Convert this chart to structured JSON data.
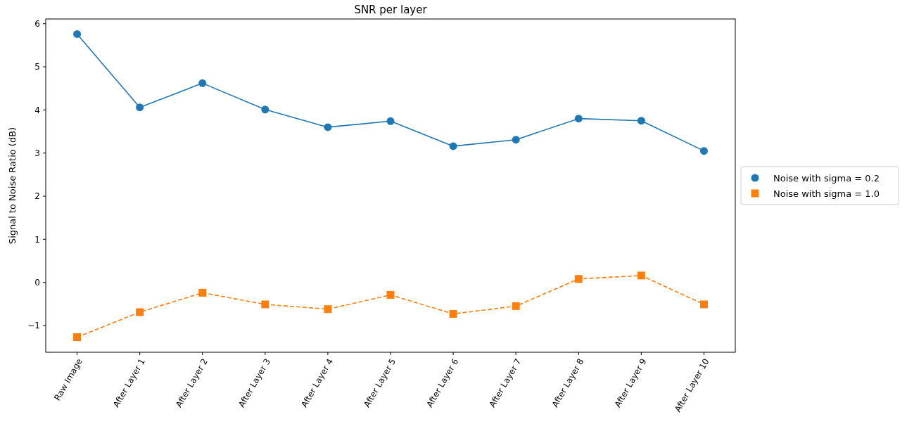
{
  "chart_data": {
    "type": "line",
    "title": "SNR per layer",
    "ylabel": "Signal to Noise Ratio (dB)",
    "categories": [
      "Raw Image",
      "After Layer 1",
      "After Layer 2",
      "After Layer 3",
      "After Layer 4",
      "After Layer 5",
      "After Layer 6",
      "After Layer 7",
      "After Layer 8",
      "After Layer 9",
      "After Layer 10"
    ],
    "series": [
      {
        "name": "Noise with sigma = 0.2",
        "color": "#1f77b4",
        "marker": "circle",
        "line_style": "solid",
        "values": [
          5.76,
          4.06,
          4.62,
          4.01,
          3.6,
          3.74,
          3.16,
          3.31,
          3.8,
          3.75,
          3.05
        ]
      },
      {
        "name": "Noise with sigma = 1.0",
        "color": "#ff7f0e",
        "marker": "square",
        "line_style": "dashed",
        "values": [
          -1.27,
          -0.69,
          -0.24,
          -0.51,
          -0.62,
          -0.29,
          -0.73,
          -0.55,
          0.08,
          0.16,
          -0.51
        ]
      }
    ],
    "ylim": [
      -1.62,
      6.11
    ],
    "yticks": [
      {
        "value": -1,
        "label": "−1"
      },
      0,
      1,
      2,
      3,
      4,
      5,
      6
    ],
    "legend": "right",
    "grid": false
  }
}
